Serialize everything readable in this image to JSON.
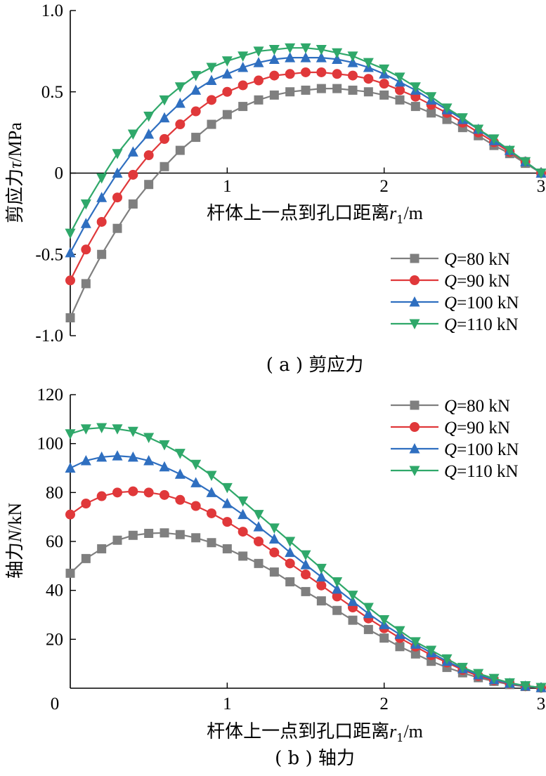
{
  "colors": {
    "Q80": "#7f7f7f",
    "Q90": "#e0383a",
    "Q100": "#2f6fc0",
    "Q110": "#2fa86a"
  },
  "legend": [
    {
      "italic": "Q",
      "text": "=80 kN",
      "color_key": "Q80",
      "marker": "square"
    },
    {
      "italic": "Q",
      "text": "=90 kN",
      "color_key": "Q90",
      "marker": "circle"
    },
    {
      "italic": "Q",
      "text": "=100 kN",
      "color_key": "Q100",
      "marker": "triangle-up"
    },
    {
      "italic": "Q",
      "text": "=110 kN",
      "color_key": "Q110",
      "marker": "triangle-down"
    }
  ],
  "chart_data": [
    {
      "type": "line",
      "caption": "( a ) 剪应力",
      "xlabel": {
        "text": "杆体上一点到孔口距离",
        "var": "r",
        "sub": "1",
        "unit": "/m"
      },
      "ylabel": {
        "text": "剪应力",
        "var": "τ",
        "unit": "/MPa"
      },
      "xlim": [
        0,
        3
      ],
      "ylim": [
        -1.0,
        1.0
      ],
      "xticks": [
        "1",
        "2",
        "3"
      ],
      "yticks": [
        {
          "v": -1.0,
          "label": "-1.0"
        },
        {
          "v": -0.5,
          "label": "-0.5"
        },
        {
          "v": 0,
          "label": "0"
        },
        {
          "v": 0.5,
          "label": "0.5"
        },
        {
          "v": 1.0,
          "label": "1.0"
        }
      ],
      "zero_line": true,
      "legend_position": "bottom-right",
      "x": [
        0,
        0.1,
        0.2,
        0.3,
        0.4,
        0.5,
        0.6,
        0.7,
        0.8,
        0.9,
        1.0,
        1.1,
        1.2,
        1.3,
        1.4,
        1.5,
        1.6,
        1.7,
        1.8,
        1.9,
        2.0,
        2.1,
        2.2,
        2.3,
        2.4,
        2.5,
        2.6,
        2.7,
        2.8,
        2.9,
        3.0
      ],
      "series": [
        {
          "name": "Q=80 kN",
          "color_key": "Q80",
          "marker": "square",
          "values": [
            -0.89,
            -0.68,
            -0.5,
            -0.34,
            -0.19,
            -0.07,
            0.04,
            0.14,
            0.22,
            0.3,
            0.36,
            0.41,
            0.45,
            0.48,
            0.5,
            0.51,
            0.52,
            0.52,
            0.51,
            0.5,
            0.48,
            0.45,
            0.41,
            0.37,
            0.33,
            0.28,
            0.23,
            0.17,
            0.12,
            0.06,
            0.0
          ]
        },
        {
          "name": "Q=90 kN",
          "color_key": "Q90",
          "marker": "circle",
          "values": [
            -0.66,
            -0.47,
            -0.3,
            -0.15,
            -0.01,
            0.11,
            0.21,
            0.3,
            0.38,
            0.45,
            0.5,
            0.54,
            0.57,
            0.6,
            0.61,
            0.62,
            0.62,
            0.61,
            0.6,
            0.58,
            0.55,
            0.51,
            0.47,
            0.42,
            0.37,
            0.31,
            0.25,
            0.19,
            0.13,
            0.07,
            0.0
          ]
        },
        {
          "name": "Q=100 kN",
          "color_key": "Q100",
          "marker": "triangle-up",
          "values": [
            -0.49,
            -0.31,
            -0.15,
            0.0,
            0.13,
            0.24,
            0.34,
            0.43,
            0.51,
            0.57,
            0.61,
            0.65,
            0.68,
            0.7,
            0.71,
            0.71,
            0.71,
            0.7,
            0.68,
            0.65,
            0.61,
            0.56,
            0.51,
            0.45,
            0.39,
            0.33,
            0.27,
            0.2,
            0.14,
            0.07,
            0.0
          ]
        },
        {
          "name": "Q=110 kN",
          "color_key": "Q110",
          "marker": "triangle-down",
          "values": [
            -0.37,
            -0.19,
            -0.03,
            0.12,
            0.24,
            0.35,
            0.45,
            0.53,
            0.6,
            0.65,
            0.69,
            0.72,
            0.75,
            0.76,
            0.77,
            0.77,
            0.76,
            0.74,
            0.72,
            0.68,
            0.64,
            0.59,
            0.53,
            0.47,
            0.4,
            0.34,
            0.27,
            0.21,
            0.14,
            0.07,
            0.0
          ]
        }
      ]
    },
    {
      "type": "line",
      "caption": "( b ) 轴力",
      "xlabel": {
        "text": "杆体上一点到孔口距离",
        "var": "r",
        "sub": "1",
        "unit": "/m"
      },
      "ylabel": {
        "text": "轴力",
        "var": "N",
        "unit": "/kN"
      },
      "xlim": [
        0,
        3
      ],
      "ylim": [
        0,
        120
      ],
      "xticks": [
        "0",
        "1",
        "2",
        "3"
      ],
      "yticks": [
        {
          "v": 20,
          "label": "20"
        },
        {
          "v": 40,
          "label": "40"
        },
        {
          "v": 60,
          "label": "60"
        },
        {
          "v": 80,
          "label": "80"
        },
        {
          "v": 100,
          "label": "100"
        },
        {
          "v": 120,
          "label": "120"
        }
      ],
      "zero_line": false,
      "legend_position": "top-right",
      "x": [
        0,
        0.1,
        0.2,
        0.3,
        0.4,
        0.5,
        0.6,
        0.7,
        0.8,
        0.9,
        1.0,
        1.1,
        1.2,
        1.3,
        1.4,
        1.5,
        1.6,
        1.7,
        1.8,
        1.9,
        2.0,
        2.1,
        2.2,
        2.3,
        2.4,
        2.5,
        2.6,
        2.7,
        2.8,
        2.9,
        3.0
      ],
      "series": [
        {
          "name": "Q=80 kN",
          "color_key": "Q80",
          "marker": "square",
          "values": [
            47,
            53,
            57,
            60.5,
            62.5,
            63.3,
            63.5,
            62.8,
            61.5,
            59.5,
            57,
            54,
            51,
            47.5,
            43.5,
            39.5,
            35.7,
            31.8,
            27.8,
            24,
            20.5,
            17,
            14,
            11,
            8.5,
            6.3,
            4.3,
            2.8,
            1.5,
            0.7,
            0.2
          ]
        },
        {
          "name": "Q=90 kN",
          "color_key": "Q90",
          "marker": "circle",
          "values": [
            71,
            75.5,
            78.5,
            80,
            80.5,
            80,
            79,
            77,
            74.5,
            71.5,
            68,
            64,
            60,
            55.5,
            51,
            46.5,
            42,
            37.5,
            33,
            28.5,
            24.5,
            20.5,
            17,
            13.5,
            10.5,
            7.5,
            5,
            3.2,
            1.8,
            0.8,
            0.2
          ]
        },
        {
          "name": "Q=100 kN",
          "color_key": "Q100",
          "marker": "triangle-up",
          "values": [
            90,
            93,
            94.5,
            95,
            94.5,
            93,
            90.5,
            87.5,
            84,
            80,
            75.5,
            71,
            66,
            61,
            55.5,
            50.5,
            45.5,
            40.5,
            35.5,
            30.5,
            26,
            22,
            18,
            14.5,
            11,
            8,
            5.5,
            3.5,
            2,
            0.9,
            0.3
          ]
        },
        {
          "name": "Q=110 kN",
          "color_key": "Q110",
          "marker": "triangle-down",
          "values": [
            104,
            106,
            106.5,
            106,
            105,
            102.5,
            99.5,
            96,
            91.5,
            87,
            82,
            76.5,
            71,
            65.5,
            60,
            54.5,
            49,
            43.5,
            38,
            33,
            28,
            23.5,
            19,
            15.5,
            12,
            8.5,
            6,
            4,
            2.2,
            1,
            0.3
          ]
        }
      ]
    }
  ]
}
